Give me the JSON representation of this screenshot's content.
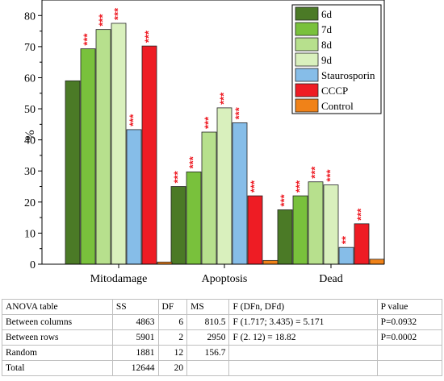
{
  "chart_data": {
    "type": "bar",
    "ylabel": "%",
    "ylim": [
      0,
      85
    ],
    "yticks": [
      0,
      10,
      20,
      30,
      40,
      50,
      60,
      70,
      80
    ],
    "categories": [
      "Mitodamage",
      "Apoptosis",
      "Dead"
    ],
    "series": [
      {
        "name": "6d",
        "color": "#4b7a26",
        "values": [
          59,
          25,
          17.5
        ],
        "marks": [
          "",
          "***",
          "***"
        ]
      },
      {
        "name": "7d",
        "color": "#79c13c",
        "values": [
          69.3,
          29.7,
          22
        ],
        "marks": [
          "***",
          "***",
          "***"
        ]
      },
      {
        "name": "8d",
        "color": "#b7e08d",
        "values": [
          75.5,
          42.5,
          26.5
        ],
        "marks": [
          "***",
          "***",
          "***"
        ]
      },
      {
        "name": "9d",
        "color": "#d9f0bd",
        "values": [
          77.5,
          50.3,
          25.5
        ],
        "marks": [
          "***",
          "***",
          "***"
        ]
      },
      {
        "name": "Staurosporin",
        "color": "#86bde8",
        "values": [
          43.3,
          45.5,
          5.4
        ],
        "marks": [
          "***",
          "***",
          "**"
        ]
      },
      {
        "name": "CCCP",
        "color": "#ee1c24",
        "values": [
          70.2,
          22,
          13
        ],
        "marks": [
          "***",
          "***",
          "***"
        ]
      },
      {
        "name": "Control",
        "color": "#f08218",
        "values": [
          0.7,
          1.2,
          1.6
        ],
        "marks": [
          "",
          "",
          ""
        ]
      }
    ],
    "legend": "top-right",
    "grid": false
  },
  "anova_table": {
    "header": [
      "ANOVA table",
      "SS",
      "DF",
      "MS",
      "F (DFn, DFd)",
      "P value"
    ],
    "rows": [
      [
        "Between columns",
        "4863",
        "6",
        "810.5",
        "F (1.717; 3.435) = 5.171",
        "P=0.0932"
      ],
      [
        "Between rows",
        "5901",
        "2",
        "2950",
        "F (2. 12) = 18.82",
        "P=0.0002"
      ],
      [
        "Random",
        "1881",
        "12",
        "156.7",
        "",
        ""
      ],
      [
        "Total",
        "12644",
        "20",
        "",
        "",
        ""
      ]
    ]
  }
}
